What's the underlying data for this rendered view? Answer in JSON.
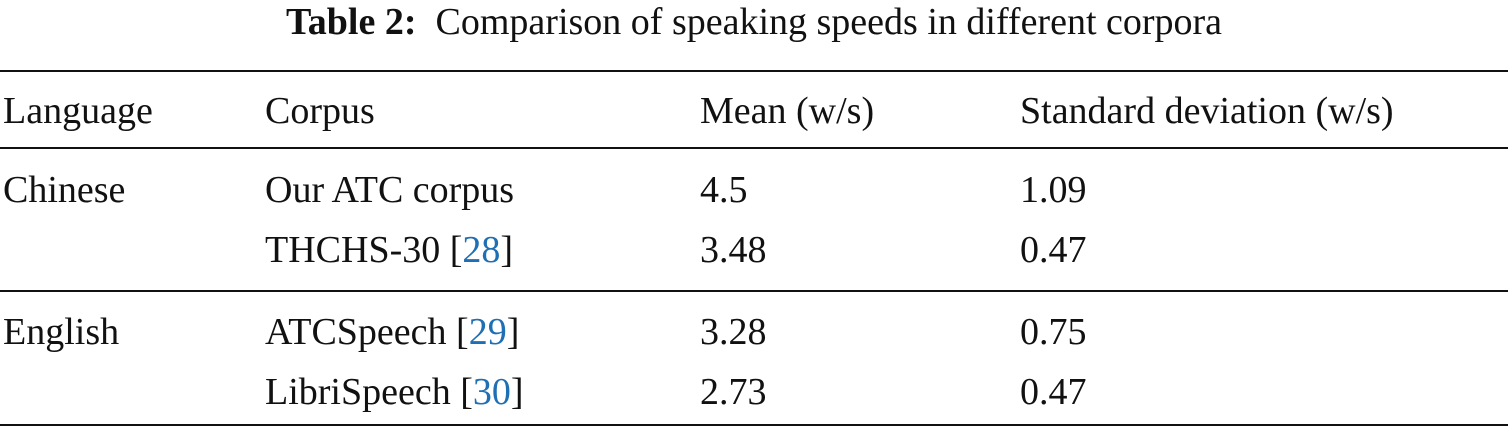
{
  "caption": {
    "label": "Table 2:",
    "text": "Comparison of speaking speeds in different corpora"
  },
  "table": {
    "header": [
      "Language",
      "Corpus",
      "Mean (w/s)",
      "Standard deviation (w/s)"
    ],
    "groups": [
      {
        "language": "Chinese",
        "rows": [
          {
            "corpus": "Our ATC corpus",
            "mean": 4.5,
            "sd": 1.09
          },
          {
            "corpus": "THCHS-30 ",
            "ref": [
              "[",
              "28",
              "]"
            ],
            "mean": 3.48,
            "sd": 0.47
          }
        ]
      },
      {
        "language": "English",
        "rows": [
          {
            "corpus": "ATCSpeech ",
            "ref": [
              "[",
              "29",
              "]"
            ],
            "mean": 3.28,
            "sd": 0.75
          },
          {
            "corpus": "LibriSpeech ",
            "ref": [
              "[",
              "30",
              "]"
            ],
            "mean": 2.73,
            "sd": 0.47
          }
        ]
      }
    ]
  }
}
